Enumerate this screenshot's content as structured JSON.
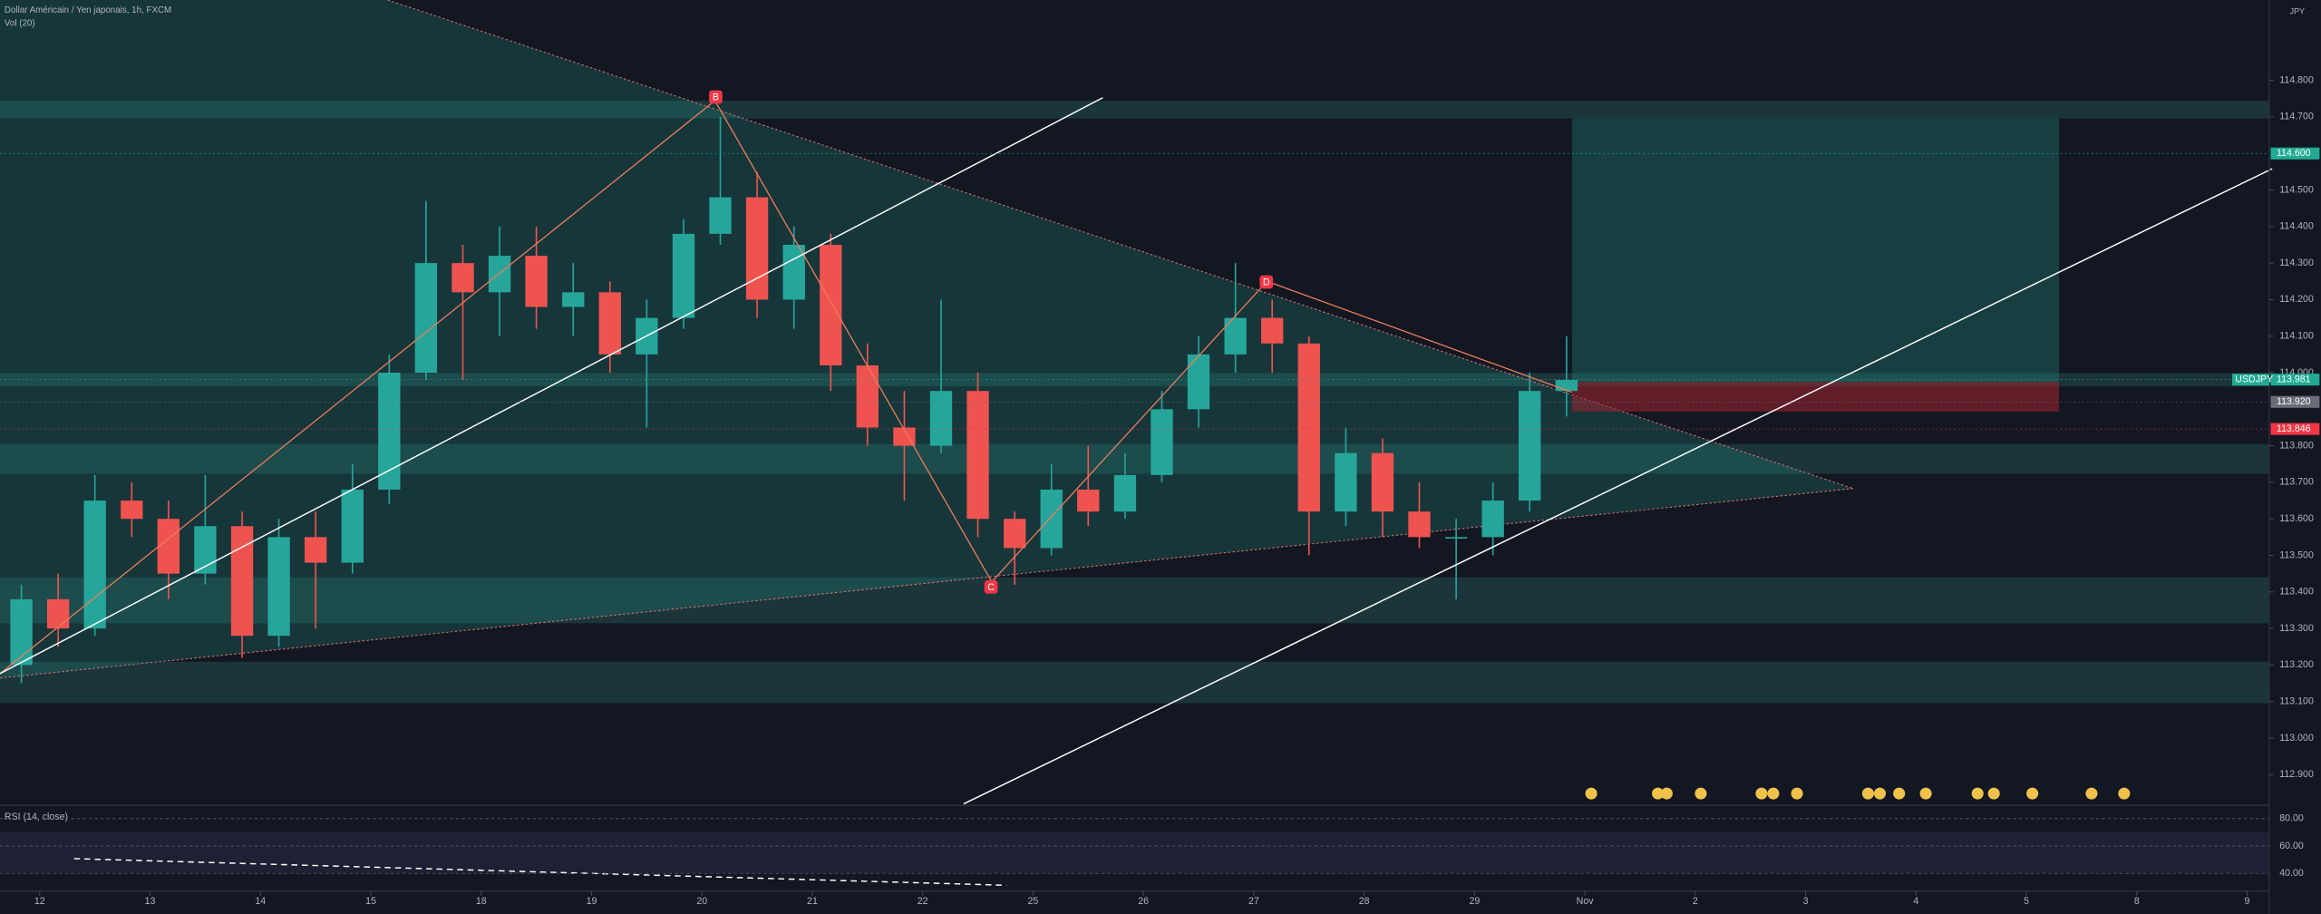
{
  "header": {
    "title": "Dollar Américain / Yen japonais, 1h, FXCM",
    "volume_label": "Vol (20)",
    "currency": "JPY"
  },
  "chart_data": {
    "type": "candlestick",
    "x": [
      -0.333,
      0,
      0.333,
      0.667,
      1,
      1.333,
      1.667,
      2,
      2.333,
      2.667,
      3,
      3.333,
      3.667,
      4,
      4.333,
      4.667,
      5,
      5.333,
      5.667,
      6,
      6.333,
      6.667,
      7,
      7.333,
      7.667,
      8,
      8.333,
      8.667,
      9,
      9.333,
      9.667,
      10,
      10.333,
      10.667,
      11,
      11.333,
      11.667,
      12,
      12.333,
      12.667,
      13,
      13.333,
      13.667
    ],
    "open": [
      113.2,
      113.38,
      113.3,
      113.65,
      113.6,
      113.45,
      113.58,
      113.28,
      113.55,
      113.48,
      113.68,
      114.0,
      114.3,
      114.22,
      114.32,
      114.18,
      114.22,
      114.05,
      114.15,
      114.38,
      114.48,
      114.2,
      114.35,
      114.02,
      113.85,
      113.8,
      113.95,
      113.6,
      113.52,
      113.68,
      113.62,
      113.72,
      113.9,
      114.05,
      114.15,
      114.08,
      113.62,
      113.78,
      113.62,
      113.55,
      113.55,
      113.65,
      113.95
    ],
    "high": [
      113.42,
      113.45,
      113.72,
      113.7,
      113.65,
      113.72,
      113.62,
      113.6,
      113.62,
      113.75,
      114.05,
      114.47,
      114.35,
      114.4,
      114.4,
      114.3,
      114.25,
      114.2,
      114.42,
      114.7,
      114.55,
      114.4,
      114.38,
      114.08,
      113.95,
      114.2,
      114.0,
      113.62,
      113.75,
      113.8,
      113.78,
      113.95,
      114.1,
      114.3,
      114.2,
      114.1,
      113.85,
      113.82,
      113.7,
      113.6,
      113.7,
      114.0,
      114.1
    ],
    "low": [
      113.15,
      113.25,
      113.28,
      113.55,
      113.38,
      113.42,
      113.22,
      113.25,
      113.3,
      113.45,
      113.64,
      113.98,
      113.98,
      114.1,
      114.12,
      114.1,
      114.0,
      113.85,
      114.12,
      114.35,
      114.15,
      114.12,
      113.95,
      113.8,
      113.65,
      113.78,
      113.55,
      113.42,
      113.5,
      113.58,
      113.6,
      113.7,
      113.85,
      114.0,
      114.0,
      113.5,
      113.58,
      113.55,
      113.52,
      113.38,
      113.5,
      113.62,
      113.88
    ],
    "close": [
      113.38,
      113.3,
      113.65,
      113.6,
      113.45,
      113.58,
      113.28,
      113.55,
      113.48,
      113.68,
      114.0,
      114.3,
      114.22,
      114.32,
      114.18,
      114.22,
      114.05,
      114.15,
      114.38,
      114.48,
      114.2,
      114.35,
      114.02,
      113.85,
      113.8,
      113.95,
      113.6,
      113.52,
      113.68,
      113.62,
      113.72,
      113.9,
      114.05,
      114.15,
      114.08,
      113.62,
      113.78,
      113.62,
      113.55,
      113.55,
      113.65,
      113.95,
      113.98
    ],
    "up_color": "#26a69a",
    "down_color": "#ef5350",
    "xlim": [
      -0.36,
      20.2
    ],
    "xticks": [
      {
        "value": 0,
        "label": "12"
      },
      {
        "value": 1,
        "label": "13"
      },
      {
        "value": 2,
        "label": "14"
      },
      {
        "value": 3,
        "label": "15"
      },
      {
        "value": 4,
        "label": "18"
      },
      {
        "value": 5,
        "label": "19"
      },
      {
        "value": 6,
        "label": "20"
      },
      {
        "value": 7,
        "label": "21"
      },
      {
        "value": 8,
        "label": "22"
      },
      {
        "value": 9,
        "label": "25"
      },
      {
        "value": 10,
        "label": "26"
      },
      {
        "value": 11,
        "label": "27"
      },
      {
        "value": 12,
        "label": "28"
      },
      {
        "value": 13,
        "label": "29"
      },
      {
        "value": 14,
        "label": "Nov"
      },
      {
        "value": 15,
        "label": "2"
      },
      {
        "value": 16,
        "label": "3"
      },
      {
        "value": 17,
        "label": "4"
      },
      {
        "value": 18,
        "label": "5"
      },
      {
        "value": 19,
        "label": "8"
      },
      {
        "value": 20,
        "label": "9"
      }
    ],
    "ylim": [
      112.82,
      115.02
    ],
    "yticks": [
      {
        "value": 114.8,
        "label": "114.800"
      },
      {
        "value": 114.7,
        "label": "114.700"
      },
      {
        "value": 114.5,
        "label": "114.500"
      },
      {
        "value": 114.4,
        "label": "114.400"
      },
      {
        "value": 114.3,
        "label": "114.300"
      },
      {
        "value": 114.2,
        "label": "114.200"
      },
      {
        "value": 114.1,
        "label": "114.100"
      },
      {
        "value": 114.0,
        "label": "114.000"
      },
      {
        "value": 113.8,
        "label": "113.800"
      },
      {
        "value": 113.7,
        "label": "113.700"
      },
      {
        "value": 113.6,
        "label": "113.600"
      },
      {
        "value": 113.5,
        "label": "113.500"
      },
      {
        "value": 113.4,
        "label": "113.400"
      },
      {
        "value": 113.3,
        "label": "113.300"
      },
      {
        "value": 113.2,
        "label": "113.200"
      },
      {
        "value": 113.1,
        "label": "113.100"
      },
      {
        "value": 113.0,
        "label": "113.000"
      },
      {
        "value": 112.9,
        "label": "112.900"
      }
    ],
    "price_tags": [
      {
        "value": 114.6,
        "label": "114.600",
        "color": "#22ab94"
      },
      {
        "name": "USDJPY",
        "value": 113.981,
        "label": "113.981",
        "color": "#22ab94"
      },
      {
        "value": 113.92,
        "label": "113.920",
        "color": "#6a6d78"
      },
      {
        "value": 113.846,
        "label": "113.846",
        "color": "#f23645"
      }
    ],
    "pattern_points": [
      "B",
      "C",
      "D"
    ],
    "rsi": {
      "label": "RSI (14, close)",
      "ylim": [
        29.2,
        88.6
      ],
      "yticks": [
        {
          "value": 80,
          "label": "80.00"
        },
        {
          "value": 60,
          "label": "60.00"
        },
        {
          "value": 40,
          "label": "40.00"
        }
      ]
    }
  }
}
